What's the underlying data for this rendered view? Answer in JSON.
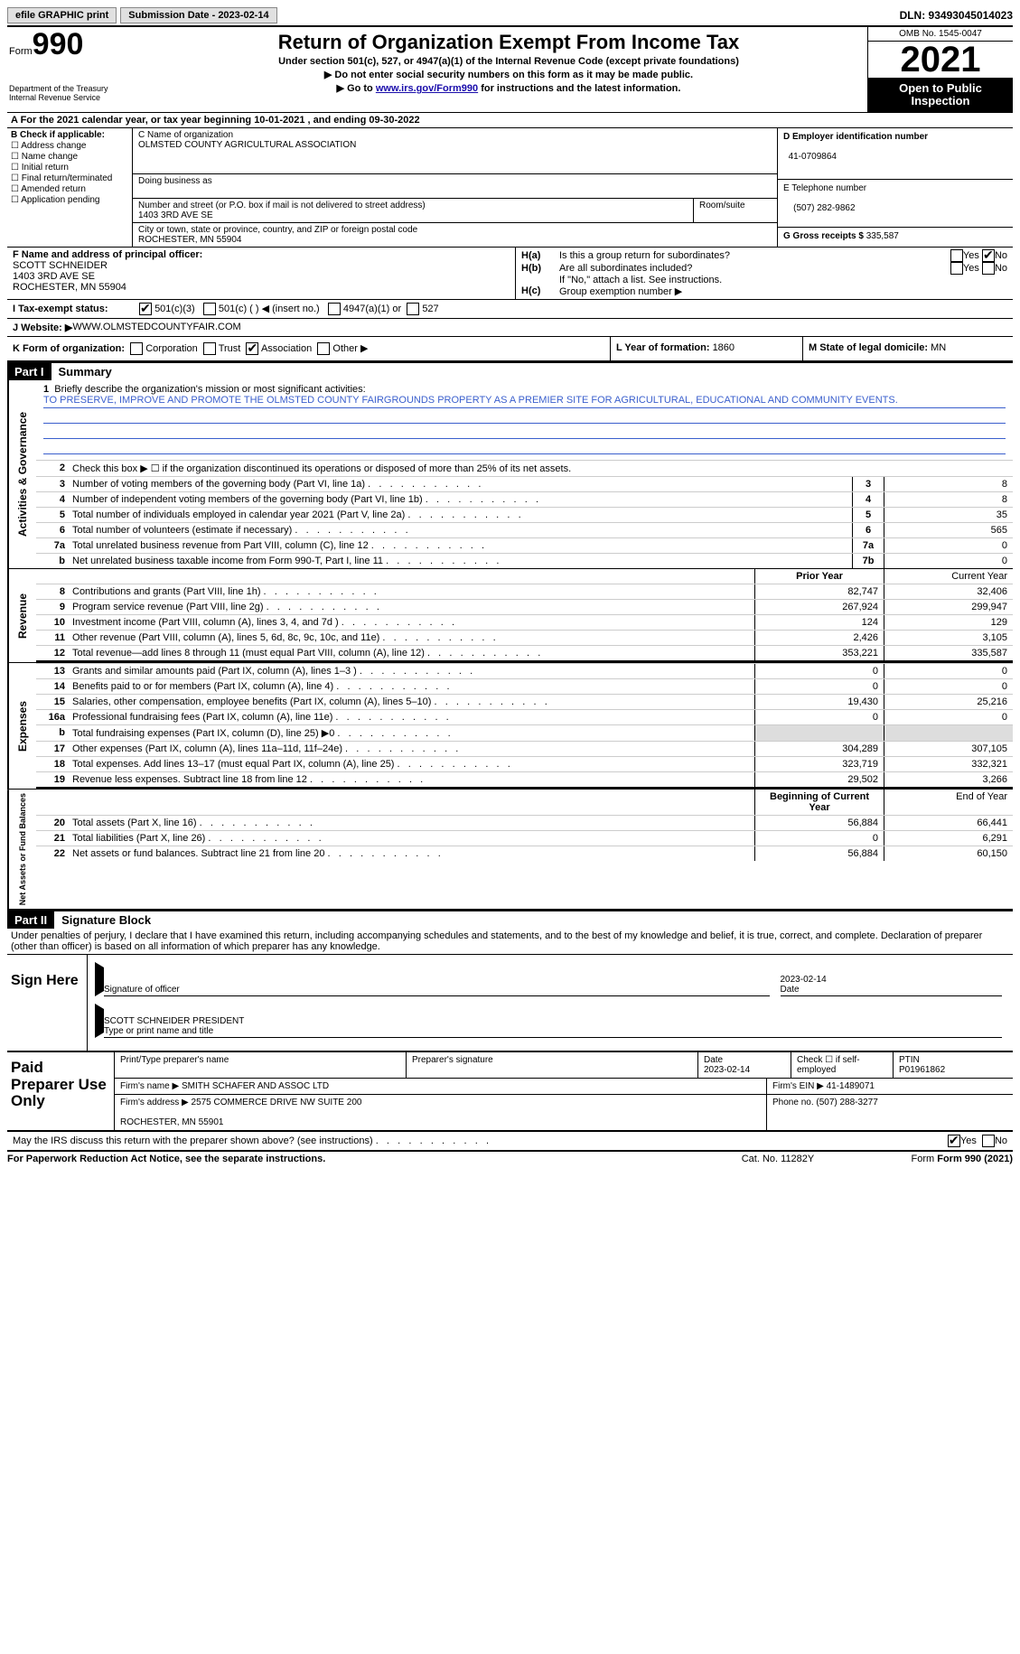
{
  "topbar": {
    "efile": "efile GRAPHIC print",
    "submission": "Submission Date - 2023-02-14",
    "dln": "DLN: 93493045014023"
  },
  "header": {
    "form_label": "Form",
    "form_number": "990",
    "dept": "Department of the Treasury\nInternal Revenue Service",
    "title": "Return of Organization Exempt From Income Tax",
    "subtitle": "Under section 501(c), 527, or 4947(a)(1) of the Internal Revenue Code (except private foundations)",
    "line1": "▶ Do not enter social security numbers on this form as it may be made public.",
    "line2_pre": "▶ Go to ",
    "line2_link": "www.irs.gov/Form990",
    "line2_post": " for instructions and the latest information.",
    "omb": "OMB No. 1545-0047",
    "year": "2021",
    "open": "Open to Public Inspection"
  },
  "row_a": "A For the 2021 calendar year, or tax year beginning 10-01-2021   , and ending 09-30-2022",
  "col_b": {
    "label": "B Check if applicable:",
    "items": [
      "Address change",
      "Name change",
      "Initial return",
      "Final return/terminated",
      "Amended return",
      "Application pending"
    ]
  },
  "col_c": {
    "name_label": "C Name of organization",
    "name": "OLMSTED COUNTY AGRICULTURAL ASSOCIATION",
    "dba_label": "Doing business as",
    "street_label": "Number and street (or P.O. box if mail is not delivered to street address)",
    "street": "1403 3RD AVE SE",
    "room_label": "Room/suite",
    "city_label": "City or town, state or province, country, and ZIP or foreign postal code",
    "city": "ROCHESTER, MN  55904"
  },
  "col_de": {
    "d_label": "D Employer identification number",
    "d_val": "41-0709864",
    "e_label": "E Telephone number",
    "e_val": "(507) 282-9862",
    "g_label": "G Gross receipts $ ",
    "g_val": "335,587"
  },
  "col_f": {
    "label": "F  Name and address of principal officer:",
    "name": "SCOTT SCHNEIDER",
    "addr1": "1403 3RD AVE SE",
    "addr2": "ROCHESTER, MN  55904"
  },
  "col_h": {
    "ha_lbl": "H(a)",
    "ha_txt": "Is this a group return for subordinates?",
    "hb_lbl": "H(b)",
    "hb_txt": "Are all subordinates included?",
    "hb_note": "If \"No,\" attach a list. See instructions.",
    "hc_lbl": "H(c)",
    "hc_txt": "Group exemption number ▶"
  },
  "row_i": {
    "label": "I   Tax-exempt status:",
    "opts": [
      "501(c)(3)",
      "501(c) (  ) ◀ (insert no.)",
      "4947(a)(1) or",
      "527"
    ]
  },
  "row_j": {
    "label": "J   Website: ▶",
    "val": "  WWW.OLMSTEDCOUNTYFAIR.COM"
  },
  "row_k": {
    "label": "K Form of organization:",
    "opts": [
      "Corporation",
      "Trust",
      "Association",
      "Other ▶"
    ],
    "l_label": "L Year of formation: ",
    "l_val": "1860",
    "m_label": "M State of legal domicile: ",
    "m_val": "MN"
  },
  "part1": {
    "header": "Part I",
    "title": "Summary",
    "mission_label": "Briefly describe the organization's mission or most significant activities:",
    "mission": "TO PRESERVE, IMPROVE AND PROMOTE THE OLMSTED COUNTY FAIRGROUNDS PROPERTY AS A PREMIER SITE FOR AGRICULTURAL, EDUCATIONAL AND COMMUNITY EVENTS.",
    "line2": "Check this box ▶ ☐  if the organization discontinued its operations or disposed of more than 25% of its net assets.",
    "prior_label": "Prior Year",
    "current_label": "Current Year",
    "beg_label": "Beginning of Current Year",
    "end_label": "End of Year"
  },
  "gov_rows": [
    {
      "n": "3",
      "t": "Number of voting members of the governing body (Part VI, line 1a)",
      "box": "3",
      "v": "8"
    },
    {
      "n": "4",
      "t": "Number of independent voting members of the governing body (Part VI, line 1b)",
      "box": "4",
      "v": "8"
    },
    {
      "n": "5",
      "t": "Total number of individuals employed in calendar year 2021 (Part V, line 2a)",
      "box": "5",
      "v": "35"
    },
    {
      "n": "6",
      "t": "Total number of volunteers (estimate if necessary)",
      "box": "6",
      "v": "565"
    },
    {
      "n": "7a",
      "t": "Total unrelated business revenue from Part VIII, column (C), line 12",
      "box": "7a",
      "v": "0"
    },
    {
      "n": "b",
      "t": "Net unrelated business taxable income from Form 990-T, Part I, line 11",
      "box": "7b",
      "v": "0"
    }
  ],
  "rev_rows": [
    {
      "n": "8",
      "t": "Contributions and grants (Part VIII, line 1h)",
      "p": "82,747",
      "c": "32,406"
    },
    {
      "n": "9",
      "t": "Program service revenue (Part VIII, line 2g)",
      "p": "267,924",
      "c": "299,947"
    },
    {
      "n": "10",
      "t": "Investment income (Part VIII, column (A), lines 3, 4, and 7d )",
      "p": "124",
      "c": "129"
    },
    {
      "n": "11",
      "t": "Other revenue (Part VIII, column (A), lines 5, 6d, 8c, 9c, 10c, and 11e)",
      "p": "2,426",
      "c": "3,105"
    },
    {
      "n": "12",
      "t": "Total revenue—add lines 8 through 11 (must equal Part VIII, column (A), line 12)",
      "p": "353,221",
      "c": "335,587"
    }
  ],
  "exp_rows": [
    {
      "n": "13",
      "t": "Grants and similar amounts paid (Part IX, column (A), lines 1–3 )",
      "p": "0",
      "c": "0"
    },
    {
      "n": "14",
      "t": "Benefits paid to or for members (Part IX, column (A), line 4)",
      "p": "0",
      "c": "0"
    },
    {
      "n": "15",
      "t": "Salaries, other compensation, employee benefits (Part IX, column (A), lines 5–10)",
      "p": "19,430",
      "c": "25,216"
    },
    {
      "n": "16a",
      "t": "Professional fundraising fees (Part IX, column (A), line 11e)",
      "p": "0",
      "c": "0"
    },
    {
      "n": "b",
      "t": "Total fundraising expenses (Part IX, column (D), line 25) ▶0",
      "p": "shade",
      "c": "shade"
    },
    {
      "n": "17",
      "t": "Other expenses (Part IX, column (A), lines 11a–11d, 11f–24e)",
      "p": "304,289",
      "c": "307,105"
    },
    {
      "n": "18",
      "t": "Total expenses. Add lines 13–17 (must equal Part IX, column (A), line 25)",
      "p": "323,719",
      "c": "332,321"
    },
    {
      "n": "19",
      "t": "Revenue less expenses. Subtract line 18 from line 12",
      "p": "29,502",
      "c": "3,266"
    }
  ],
  "net_rows": [
    {
      "n": "20",
      "t": "Total assets (Part X, line 16)",
      "p": "56,884",
      "c": "66,441"
    },
    {
      "n": "21",
      "t": "Total liabilities (Part X, line 26)",
      "p": "0",
      "c": "6,291"
    },
    {
      "n": "22",
      "t": "Net assets or fund balances. Subtract line 21 from line 20",
      "p": "56,884",
      "c": "60,150"
    }
  ],
  "part2": {
    "header": "Part II",
    "title": "Signature Block",
    "decl": "Under penalties of perjury, I declare that I have examined this return, including accompanying schedules and statements, and to the best of my knowledge and belief, it is true, correct, and complete. Declaration of preparer (other than officer) is based on all information of which preparer has any knowledge."
  },
  "sign": {
    "label": "Sign Here",
    "sig_label": "Signature of officer",
    "date": "2023-02-14",
    "date_label": "Date",
    "name": "SCOTT SCHNEIDER  PRESIDENT",
    "name_label": "Type or print name and title"
  },
  "paid": {
    "label": "Paid Preparer Use Only",
    "r1": {
      "c1": "Print/Type preparer's name",
      "c2": "Preparer's signature",
      "c3": "Date\n2023-02-14",
      "c4": "Check ☐ if self-employed",
      "c5": "PTIN\nP01961862"
    },
    "r2": {
      "c1": "Firm's name    ▶ SMITH SCHAFER AND ASSOC LTD",
      "c2": "Firm's EIN ▶ 41-1489071"
    },
    "r3": {
      "c1": "Firm's address ▶ 2575 COMMERCE DRIVE NW SUITE 200\n\nROCHESTER, MN  55901",
      "c2": "Phone no. (507) 288-3277"
    }
  },
  "footer": {
    "q": "May the IRS discuss this return with the preparer shown above? (see instructions)",
    "paperwork": "For Paperwork Reduction Act Notice, see the separate instructions.",
    "cat": "Cat. No. 11282Y",
    "form": "Form 990 (2021)"
  }
}
